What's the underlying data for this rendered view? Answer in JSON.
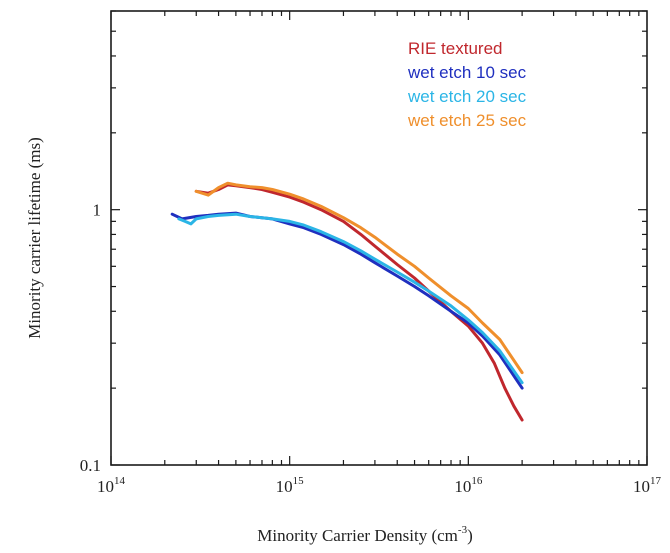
{
  "chart_data": {
    "type": "line",
    "title": "",
    "xlabel": "Minority Carrier Density (cm",
    "xlabel_sup": "-3",
    "xlabel_close": ")",
    "ylabel": "Minority carrier lifetime (ms)",
    "x_scale": "log",
    "y_scale": "log",
    "xlim": [
      100000000000000.0,
      1e+17
    ],
    "ylim": [
      0.1,
      6
    ],
    "grid": false,
    "legend_position": "top-right",
    "x_ticks": [
      {
        "base": "10",
        "exp": "14",
        "value": 100000000000000.0
      },
      {
        "base": "10",
        "exp": "15",
        "value": 1000000000000000.0
      },
      {
        "base": "10",
        "exp": "16",
        "value": 1e+16
      },
      {
        "base": "10",
        "exp": "17",
        "value": 1e+17
      }
    ],
    "y_ticks": [
      {
        "label": "0.1",
        "value": 0.1
      },
      {
        "label": "1",
        "value": 1
      }
    ],
    "series": [
      {
        "name": "RIE textured",
        "color": "#c0272d",
        "x": [
          300000000000000.0,
          350000000000000.0,
          400000000000000.0,
          450000000000000.0,
          500000000000000.0,
          600000000000000.0,
          700000000000000.0,
          800000000000000.0,
          1000000000000000.0,
          1200000000000000.0,
          1500000000000000.0,
          2000000000000000.0,
          2500000000000000.0,
          3000000000000000.0,
          4000000000000000.0,
          5000000000000000.0,
          6000000000000000.0,
          8000000000000000.0,
          1e+16,
          1.2e+16,
          1.4e+16,
          1.6e+16,
          1.8e+16,
          2e+16
        ],
        "y": [
          1.18,
          1.16,
          1.2,
          1.25,
          1.24,
          1.22,
          1.2,
          1.17,
          1.12,
          1.07,
          1.0,
          0.9,
          0.8,
          0.72,
          0.61,
          0.54,
          0.48,
          0.4,
          0.35,
          0.3,
          0.25,
          0.2,
          0.17,
          0.15
        ]
      },
      {
        "name": "wet etch 10 sec",
        "color": "#1f2fbf",
        "x": [
          220000000000000.0,
          250000000000000.0,
          300000000000000.0,
          350000000000000.0,
          400000000000000.0,
          500000000000000.0,
          600000000000000.0,
          700000000000000.0,
          800000000000000.0,
          1000000000000000.0,
          1200000000000000.0,
          1500000000000000.0,
          2000000000000000.0,
          2500000000000000.0,
          3000000000000000.0,
          4000000000000000.0,
          5000000000000000.0,
          6000000000000000.0,
          8000000000000000.0,
          1e+16,
          1.2e+16,
          1.5e+16,
          2e+16
        ],
        "y": [
          0.96,
          0.92,
          0.94,
          0.95,
          0.96,
          0.97,
          0.94,
          0.93,
          0.92,
          0.88,
          0.85,
          0.8,
          0.73,
          0.67,
          0.62,
          0.55,
          0.5,
          0.46,
          0.4,
          0.36,
          0.32,
          0.27,
          0.2
        ]
      },
      {
        "name": "wet etch 20 sec",
        "color": "#2bb5e6",
        "x": [
          240000000000000.0,
          260000000000000.0,
          280000000000000.0,
          300000000000000.0,
          350000000000000.0,
          400000000000000.0,
          500000000000000.0,
          600000000000000.0,
          700000000000000.0,
          800000000000000.0,
          1000000000000000.0,
          1200000000000000.0,
          1500000000000000.0,
          2000000000000000.0,
          2500000000000000.0,
          3000000000000000.0,
          4000000000000000.0,
          5000000000000000.0,
          6000000000000000.0,
          8000000000000000.0,
          1e+16,
          1.2e+16,
          1.5e+16,
          2e+16
        ],
        "y": [
          0.92,
          0.9,
          0.88,
          0.92,
          0.94,
          0.95,
          0.96,
          0.94,
          0.93,
          0.92,
          0.9,
          0.87,
          0.82,
          0.75,
          0.69,
          0.64,
          0.57,
          0.52,
          0.48,
          0.42,
          0.37,
          0.33,
          0.28,
          0.21
        ]
      },
      {
        "name": "wet etch 25 sec",
        "color": "#ef8f2c",
        "x": [
          300000000000000.0,
          350000000000000.0,
          400000000000000.0,
          450000000000000.0,
          500000000000000.0,
          600000000000000.0,
          700000000000000.0,
          800000000000000.0,
          1000000000000000.0,
          1200000000000000.0,
          1500000000000000.0,
          2000000000000000.0,
          2500000000000000.0,
          3000000000000000.0,
          4000000000000000.0,
          5000000000000000.0,
          6000000000000000.0,
          8000000000000000.0,
          1e+16,
          1.2e+16,
          1.5e+16,
          2e+16
        ],
        "y": [
          1.18,
          1.14,
          1.22,
          1.27,
          1.25,
          1.23,
          1.22,
          1.2,
          1.15,
          1.1,
          1.03,
          0.93,
          0.85,
          0.78,
          0.67,
          0.6,
          0.54,
          0.46,
          0.41,
          0.36,
          0.31,
          0.23
        ]
      }
    ]
  }
}
